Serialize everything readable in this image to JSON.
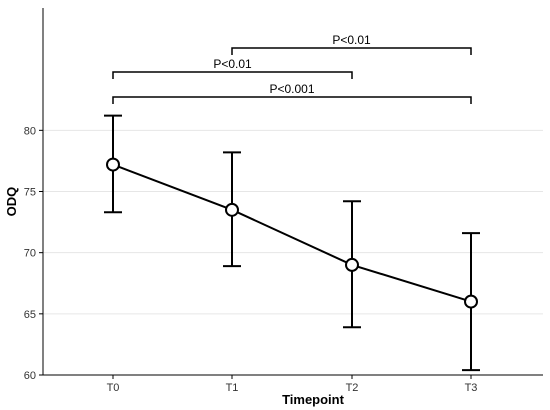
{
  "chart_data": {
    "type": "line",
    "xlabel": "Timepoint",
    "ylabel": "ODQ",
    "categories": [
      "T0",
      "T1",
      "T2",
      "T3"
    ],
    "series": [
      {
        "values": [
          77.2,
          73.5,
          69.0,
          66.0
        ],
        "error_lower": [
          73.3,
          68.9,
          63.9,
          60.4
        ],
        "error_upper": [
          81.2,
          78.2,
          74.2,
          71.6
        ]
      }
    ],
    "yticks": [
      60,
      65,
      70,
      75,
      80
    ],
    "ylim": [
      60,
      90
    ],
    "grid": "horizontal",
    "significance": [
      {
        "from": "T1",
        "to": "T3",
        "label": "P<0.01",
        "level": 3
      },
      {
        "from": "T0",
        "to": "T2",
        "label": "P<0.01",
        "level": 2
      },
      {
        "from": "T0",
        "to": "T3",
        "label": "P<0.001",
        "level": 1
      }
    ],
    "colors": {
      "line": "#000000",
      "grid": "#e6e6e6",
      "marker_fill": "#ffffff"
    }
  }
}
